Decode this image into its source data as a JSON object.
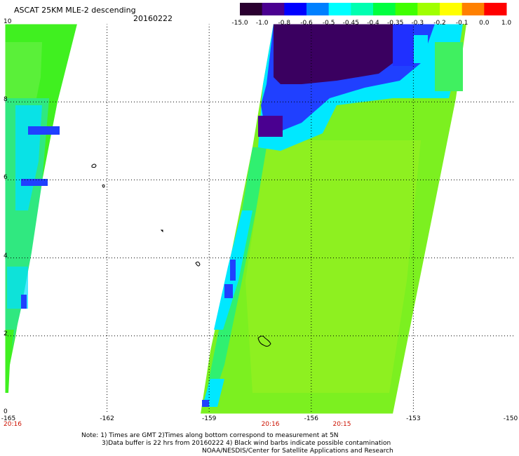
{
  "title": "ASCAT 25KM MLE-2 descending",
  "date": "20160222",
  "colorbar": {
    "labels": [
      "-15.0",
      "-1.0",
      "-0.8",
      "-0.6",
      "-0.5",
      "-0.45",
      "-0.4",
      "-0.35",
      "-0.3",
      "-0.2",
      "-0.1",
      "0.0",
      "1.0"
    ],
    "colors": [
      "#2a0030",
      "#4a0090",
      "#0000ff",
      "#0080ff",
      "#00ffff",
      "#00ffb0",
      "#00ff40",
      "#40ff00",
      "#a0ff00",
      "#ffff00",
      "#ff8000",
      "#ff0000"
    ]
  },
  "map": {
    "lat_labels": [
      "10",
      "8",
      "6",
      "4",
      "2",
      "0"
    ],
    "lon_labels": [
      "-165",
      "-162",
      "-159",
      "-156",
      "-153",
      "-150"
    ],
    "time_labels": [
      {
        "text": "20:16",
        "lon": -165.0
      },
      {
        "text": "20:16",
        "lon": -157.2
      },
      {
        "text": "20:15",
        "lon": -155.1
      }
    ],
    "lat_range": [
      0,
      10
    ],
    "lon_range": [
      -165,
      -150
    ],
    "grid": "dotted"
  },
  "notes": {
    "line1": "Note: 1) Times are GMT 2)Times along bottom correspond to measurement at 5N",
    "line2": "3)Data buffer is 22 hrs from 20160222 4) Black wind barbs indicate possible contamination",
    "line3": "NOAA/NESDIS/Center for Satellite Applications and Research"
  }
}
